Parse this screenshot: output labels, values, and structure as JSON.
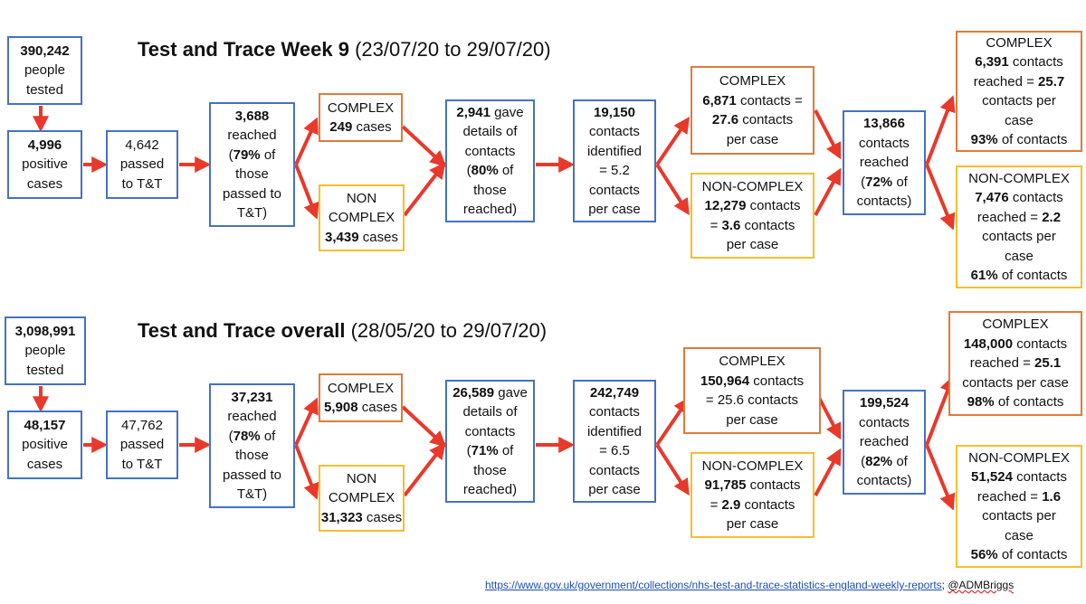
{
  "sections": [
    {
      "title_bold": "Test and Trace Week 9",
      "title_rest": "(23/07/20 to 29/07/20)",
      "tested": [
        "390,242",
        "people\ntested"
      ],
      "positive": [
        "4,996",
        "positive\ncases"
      ],
      "passed": [
        "",
        "4,642\npassed\nto T&T"
      ],
      "reached": [
        "3,688",
        "reached\n(",
        "79%",
        " of\nthose\npassed to\nT&T)"
      ],
      "complex_cases": [
        "",
        "COMPLEX\n",
        "249",
        " cases"
      ],
      "noncomplex_cases": [
        "",
        "NON\nCOMPLEX\n",
        "3,439",
        " cases"
      ],
      "gave_details": [
        "2,941",
        " gave\ndetails of\ncontacts\n(",
        "80%",
        " of\nthose\nreached)"
      ],
      "identified": [
        "19,150",
        "\ncontacts\nidentified\n= 5.2\ncontacts\nper case"
      ],
      "complex_contacts": [
        "",
        "COMPLEX\n",
        "6,871",
        " contacts =\n",
        "27.6",
        " contacts\nper case"
      ],
      "noncomplex_contacts": [
        "",
        "NON-COMPLEX\n",
        "12,279",
        " contacts\n= ",
        "3.6",
        " contacts\nper case"
      ],
      "total_reached": [
        "13,866",
        "\ncontacts\nreached\n(",
        "72%",
        " of\ncontacts)"
      ],
      "complex_reached": [
        "",
        "COMPLEX\n",
        "6,391",
        " contacts\nreached = ",
        "25.7",
        "\ncontacts per\ncase\n",
        "93%",
        " of contacts"
      ],
      "noncomplex_reached": [
        "",
        "NON-COMPLEX\n",
        "7,476",
        " contacts\nreached = ",
        "2.2",
        "\ncontacts per\ncase\n",
        "61%",
        " of contacts"
      ]
    },
    {
      "title_bold": "Test and Trace overall",
      "title_rest": "(28/05/20 to 29/07/20)",
      "tested": [
        "3,098,991",
        "people\ntested"
      ],
      "positive": [
        "48,157",
        "positive\ncases"
      ],
      "passed": [
        "",
        "47,762\npassed\nto T&T"
      ],
      "reached": [
        "37,231",
        "reached\n(",
        "78%",
        " of\nthose\npassed to\nT&T)"
      ],
      "complex_cases": [
        "",
        "COMPLEX\n",
        "5,908",
        " cases"
      ],
      "noncomplex_cases": [
        "",
        "NON\nCOMPLEX\n",
        "31,323",
        " cases"
      ],
      "gave_details": [
        "26,589",
        " gave\ndetails of\ncontacts\n(",
        "71%",
        " of\nthose\nreached)"
      ],
      "identified": [
        "242,749",
        "\ncontacts\nidentified\n= 6.5\ncontacts\nper case"
      ],
      "complex_contacts": [
        "",
        "COMPLEX\n",
        "150,964",
        " contacts\n= 25.6 contacts\nper case"
      ],
      "noncomplex_contacts": [
        "",
        "NON-COMPLEX\n",
        "91,785",
        " contacts\n= ",
        "2.9",
        " contacts\nper case"
      ],
      "total_reached": [
        "199,524",
        "\ncontacts\nreached\n(",
        "82%",
        " of\ncontacts)"
      ],
      "complex_reached": [
        "",
        "COMPLEX\n",
        "148,000",
        " contacts\nreached = ",
        "25.1",
        "\ncontacts per case\n",
        "98%",
        " of contacts"
      ],
      "noncomplex_reached": [
        "",
        "NON-COMPLEX\n",
        "51,524",
        " contacts\nreached = ",
        "1.6",
        "\ncontacts per\ncase\n",
        "56%",
        " of contacts"
      ]
    }
  ],
  "footer": {
    "source_url": "https://www.gov.uk/government/collections/nhs-test-and-trace-statistics-england-weekly-reports",
    "separator": "; ",
    "handle": "@ADMBriggs"
  },
  "colors": {
    "blue": "#4472c4",
    "orange": "#e07b39",
    "yellow": "#f5bf2b",
    "arrow": "#e8392b"
  }
}
